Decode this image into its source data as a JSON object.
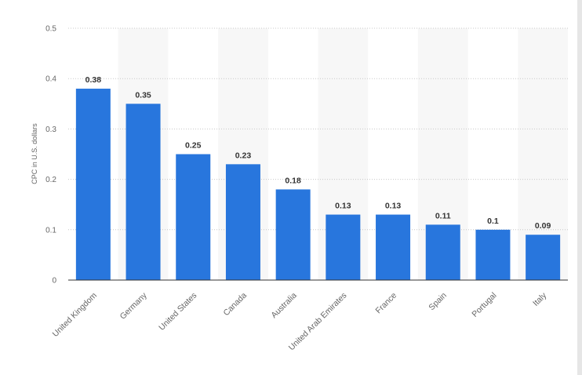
{
  "chart_data": {
    "type": "bar",
    "title": "",
    "xlabel": "",
    "ylabel": "CPC in U.S. dollars",
    "ylim": [
      0,
      0.5
    ],
    "yticks": [
      "0",
      "0.1",
      "0.2",
      "0.3",
      "0.4",
      "0.5"
    ],
    "grid": true,
    "legend": "none",
    "categories": [
      "United Kingdom",
      "Germany",
      "United States",
      "Canada",
      "Australia",
      "United Arab Emirates",
      "France",
      "Spain",
      "Portugal",
      "Italy"
    ],
    "values": [
      0.38,
      0.35,
      0.25,
      0.23,
      0.18,
      0.13,
      0.13,
      0.11,
      0.1,
      0.09
    ],
    "value_labels": [
      "0.38",
      "0.35",
      "0.25",
      "0.23",
      "0.18",
      "0.13",
      "0.13",
      "0.11",
      "0.1",
      "0.09"
    ],
    "colors": {
      "bar": "#2876dd",
      "band": "#f7f7f7",
      "grid": "#c8c8c8",
      "axis": "#333333",
      "right_edge": "#e6e6e6"
    }
  }
}
